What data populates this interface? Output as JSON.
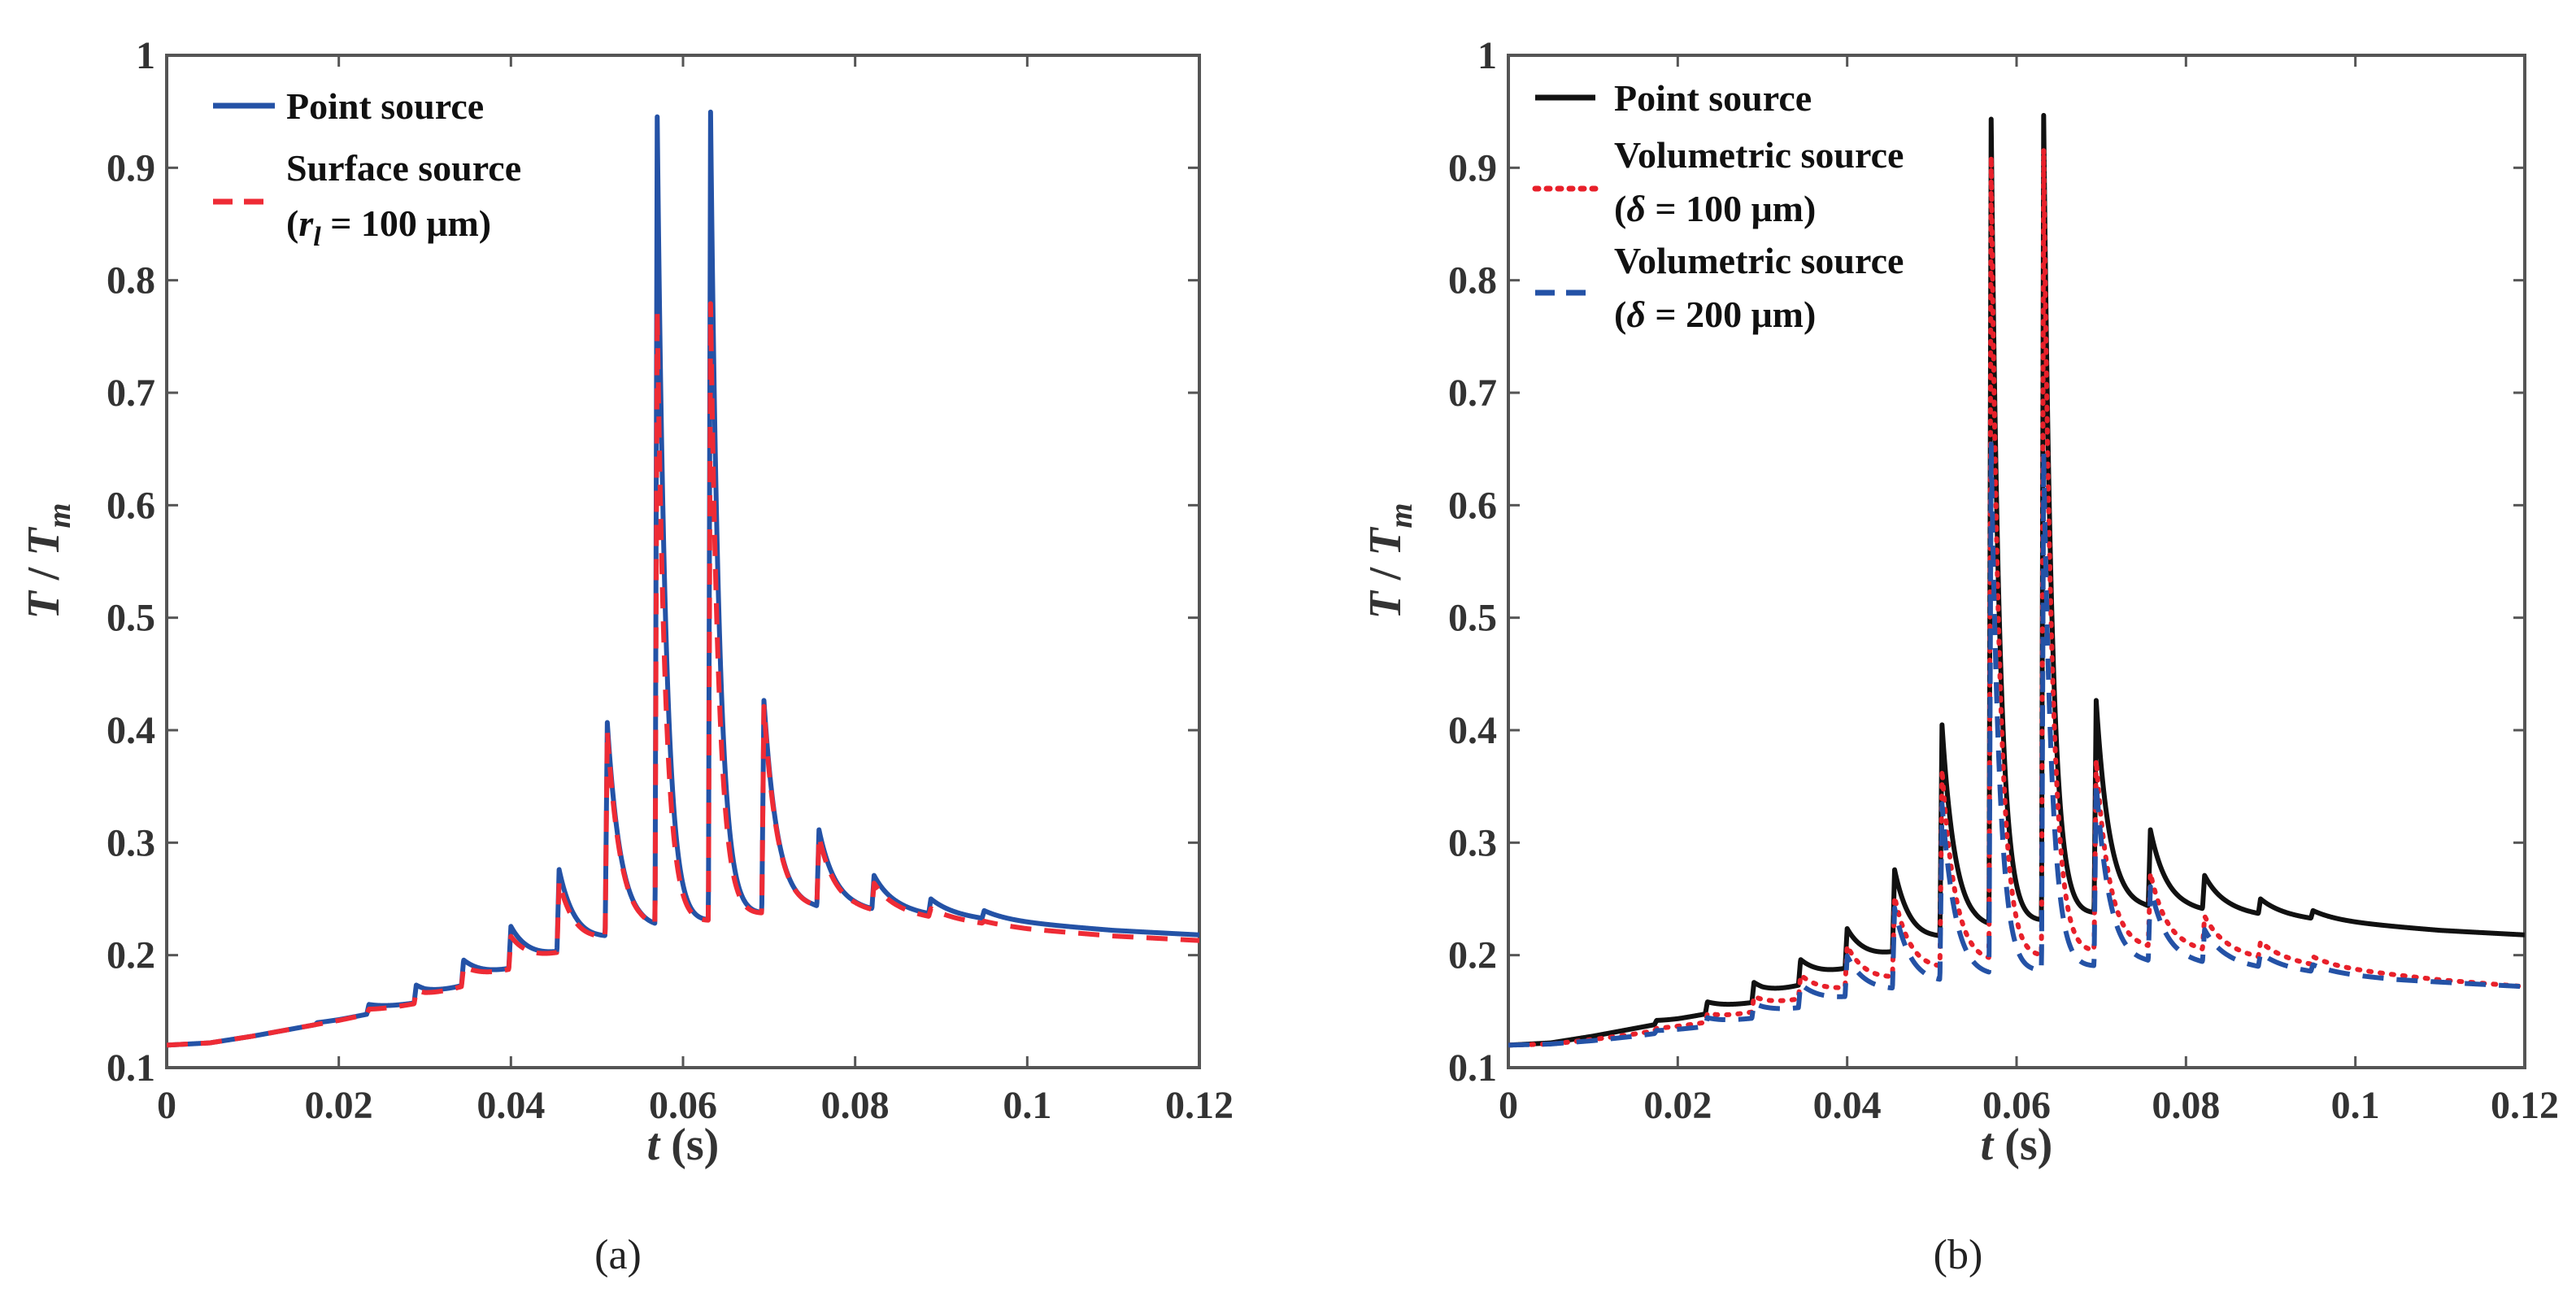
{
  "figure": {
    "captions": [
      "(a)",
      "(b)"
    ]
  },
  "chart_data": [
    {
      "type": "line",
      "panel": "a",
      "xlabel": "t",
      "xlabel_unit": " (s)",
      "ylabel_main": "T",
      "ylabel_sep": " / ",
      "ylabel_denominator": "T",
      "ylabel_subscript": "m",
      "xlim": [
        0,
        0.12
      ],
      "ylim": [
        0.1,
        1.0
      ],
      "xticks": [
        0,
        0.02,
        0.04,
        0.06,
        0.08,
        0.1,
        0.12
      ],
      "xtick_labels": [
        "0",
        "0.02",
        "0.04",
        "0.06",
        "0.08",
        "0.1",
        "0.12"
      ],
      "yticks": [
        0.1,
        0.2,
        0.3,
        0.4,
        0.5,
        0.6,
        0.7,
        0.8,
        0.9,
        1.0
      ],
      "ytick_labels": [
        "0.1",
        "0.2",
        "0.3",
        "0.4",
        "0.5",
        "0.6",
        "0.7",
        "0.8",
        "0.9",
        "1"
      ],
      "legend_position": "top-left",
      "baseline": {
        "x": [
          0,
          0.005,
          0.01,
          0.015,
          0.02,
          0.025,
          0.03,
          0.035,
          0.04,
          0.045,
          0.05,
          0.055,
          0.06,
          0.065,
          0.07,
          0.075,
          0.08,
          0.085,
          0.09,
          0.095,
          0.1,
          0.105,
          0.11,
          0.115,
          0.12
        ],
        "y": [
          0.12,
          0.122,
          0.128,
          0.135,
          0.142,
          0.15,
          0.158,
          0.172,
          0.185,
          0.198,
          0.21,
          0.22,
          0.226,
          0.232,
          0.237,
          0.24,
          0.239,
          0.237,
          0.234,
          0.231,
          0.228,
          0.225,
          0.222,
          0.22,
          0.218
        ]
      },
      "series": [
        {
          "name": "Point source",
          "color": "#2452a6",
          "dash": "solid",
          "width": 6,
          "peak_times": [
            0.0175,
            0.0235,
            0.029,
            0.0345,
            0.04,
            0.0456,
            0.0512,
            0.057,
            0.0632,
            0.0694,
            0.0758,
            0.0822,
            0.0888,
            0.095
          ],
          "peak_values": [
            0.14,
            0.156,
            0.172,
            0.193,
            0.222,
            0.272,
            0.402,
            0.94,
            0.948,
            0.425,
            0.308,
            0.268,
            0.248,
            0.238
          ],
          "decay_taus": [
            0.003,
            0.003,
            0.003,
            0.0028,
            0.0024,
            0.002,
            0.0016,
            0.001,
            0.001,
            0.0016,
            0.002,
            0.0024,
            0.0028,
            0.003
          ]
        },
        {
          "name": "Surface source",
          "name_line2_prefix": "(",
          "name_line2_var": "r",
          "name_line2_sub": "l",
          "name_line2_rest": " = 100 μm)",
          "color": "#ee2b35",
          "dash": "dashed",
          "width": 6,
          "peak_times": [
            0.0175,
            0.0235,
            0.029,
            0.0345,
            0.04,
            0.0456,
            0.0512,
            0.057,
            0.0632,
            0.0694,
            0.0758,
            0.0822,
            0.0888,
            0.095
          ],
          "peak_values": [
            0.138,
            0.152,
            0.168,
            0.188,
            0.214,
            0.262,
            0.395,
            0.768,
            0.778,
            0.42,
            0.302,
            0.262,
            0.242,
            0.233
          ],
          "decay_taus": [
            0.003,
            0.003,
            0.003,
            0.0028,
            0.0024,
            0.002,
            0.0016,
            0.001,
            0.001,
            0.0016,
            0.002,
            0.0024,
            0.0028,
            0.003
          ],
          "tail_offset": -0.005
        }
      ]
    },
    {
      "type": "line",
      "panel": "b",
      "xlabel": "t",
      "xlabel_unit": " (s)",
      "ylabel_main": "T",
      "ylabel_sep": " / ",
      "ylabel_denominator": "T",
      "ylabel_subscript": "m",
      "xlim": [
        0,
        0.12
      ],
      "ylim": [
        0.1,
        1.0
      ],
      "xticks": [
        0,
        0.02,
        0.04,
        0.06,
        0.08,
        0.1,
        0.12
      ],
      "xtick_labels": [
        "0",
        "0.02",
        "0.04",
        "0.06",
        "0.08",
        "0.1",
        "0.12"
      ],
      "yticks": [
        0.1,
        0.2,
        0.3,
        0.4,
        0.5,
        0.6,
        0.7,
        0.8,
        0.9,
        1.0
      ],
      "ytick_labels": [
        "0.1",
        "0.2",
        "0.3",
        "0.4",
        "0.5",
        "0.6",
        "0.7",
        "0.8",
        "0.9",
        "1"
      ],
      "legend_position": "top-left",
      "series": [
        {
          "name": "Point source",
          "color": "#111111",
          "dash": "solid",
          "width": 6,
          "baseline": {
            "x": [
              0,
              0.005,
              0.01,
              0.015,
              0.02,
              0.025,
              0.03,
              0.035,
              0.04,
              0.045,
              0.05,
              0.055,
              0.06,
              0.065,
              0.07,
              0.075,
              0.08,
              0.085,
              0.09,
              0.095,
              0.1,
              0.105,
              0.11,
              0.115,
              0.12
            ],
            "y": [
              0.12,
              0.122,
              0.128,
              0.135,
              0.142,
              0.15,
              0.158,
              0.172,
              0.185,
              0.198,
              0.21,
              0.22,
              0.226,
              0.232,
              0.237,
              0.24,
              0.239,
              0.237,
              0.234,
              0.231,
              0.228,
              0.225,
              0.222,
              0.22,
              0.218
            ]
          },
          "peak_times": [
            0.0175,
            0.0235,
            0.029,
            0.0345,
            0.04,
            0.0456,
            0.0512,
            0.057,
            0.0632,
            0.0694,
            0.0758,
            0.0822,
            0.0888,
            0.095
          ],
          "peak_values": [
            0.142,
            0.158,
            0.174,
            0.193,
            0.22,
            0.272,
            0.4,
            0.938,
            0.945,
            0.425,
            0.308,
            0.268,
            0.248,
            0.238
          ],
          "decay_taus": [
            0.003,
            0.003,
            0.003,
            0.0028,
            0.0024,
            0.002,
            0.0016,
            0.001,
            0.001,
            0.0016,
            0.002,
            0.0024,
            0.0028,
            0.003
          ]
        },
        {
          "name": "Volumetric source",
          "name_line2_prefix": "(",
          "name_line2_var": "δ",
          "name_line2_rest": " = 100 μm)",
          "color": "#e8202a",
          "dash": "dotted",
          "width": 6,
          "baseline": {
            "x": [
              0,
              0.005,
              0.01,
              0.015,
              0.02,
              0.025,
              0.03,
              0.035,
              0.04,
              0.045,
              0.05,
              0.055,
              0.06,
              0.065,
              0.07,
              0.075,
              0.08,
              0.085,
              0.09,
              0.095,
              0.1,
              0.105,
              0.11,
              0.115,
              0.12
            ],
            "y": [
              0.12,
              0.121,
              0.125,
              0.13,
              0.136,
              0.142,
              0.15,
              0.16,
              0.168,
              0.176,
              0.184,
              0.19,
              0.196,
              0.2,
              0.203,
              0.205,
              0.204,
              0.2,
              0.195,
              0.19,
              0.186,
              0.182,
              0.178,
              0.175,
              0.172
            ]
          },
          "peak_times": [
            0.0175,
            0.0235,
            0.029,
            0.0345,
            0.04,
            0.0456,
            0.0512,
            0.057,
            0.0632,
            0.0694,
            0.0758,
            0.0822,
            0.0888,
            0.095
          ],
          "peak_values": [
            0.135,
            0.148,
            0.162,
            0.18,
            0.205,
            0.248,
            0.36,
            0.905,
            0.915,
            0.372,
            0.27,
            0.232,
            0.21,
            0.197
          ],
          "decay_taus": [
            0.003,
            0.003,
            0.003,
            0.0028,
            0.0024,
            0.002,
            0.0016,
            0.001,
            0.001,
            0.0016,
            0.002,
            0.0024,
            0.0028,
            0.003
          ]
        },
        {
          "name": "Volumetric source",
          "name_line2_prefix": "(",
          "name_line2_var": "δ",
          "name_line2_rest": " = 200 μm)",
          "color": "#2452a6",
          "dash": "dashed",
          "width": 6,
          "baseline": {
            "x": [
              0,
              0.005,
              0.01,
              0.015,
              0.02,
              0.025,
              0.03,
              0.035,
              0.04,
              0.045,
              0.05,
              0.055,
              0.06,
              0.065,
              0.07,
              0.075,
              0.08,
              0.085,
              0.09,
              0.095,
              0.1,
              0.105,
              0.11,
              0.115,
              0.12
            ],
            "y": [
              0.12,
              0.121,
              0.124,
              0.128,
              0.133,
              0.138,
              0.144,
              0.152,
              0.16,
              0.166,
              0.172,
              0.178,
              0.183,
              0.187,
              0.19,
              0.192,
              0.192,
              0.19,
              0.187,
              0.184,
              0.181,
              0.178,
              0.176,
              0.174,
              0.172
            ]
          },
          "peak_times": [
            0.0175,
            0.0235,
            0.029,
            0.0345,
            0.04,
            0.0456,
            0.0512,
            0.057,
            0.0632,
            0.0694,
            0.0758,
            0.0822,
            0.0888,
            0.095
          ],
          "peak_values": [
            0.133,
            0.144,
            0.156,
            0.172,
            0.196,
            0.238,
            0.33,
            0.65,
            0.645,
            0.352,
            0.258,
            0.22,
            0.2,
            0.19
          ],
          "decay_taus": [
            0.003,
            0.003,
            0.003,
            0.0028,
            0.0024,
            0.002,
            0.0016,
            0.001,
            0.001,
            0.0016,
            0.002,
            0.0024,
            0.0028,
            0.003
          ]
        }
      ]
    }
  ]
}
